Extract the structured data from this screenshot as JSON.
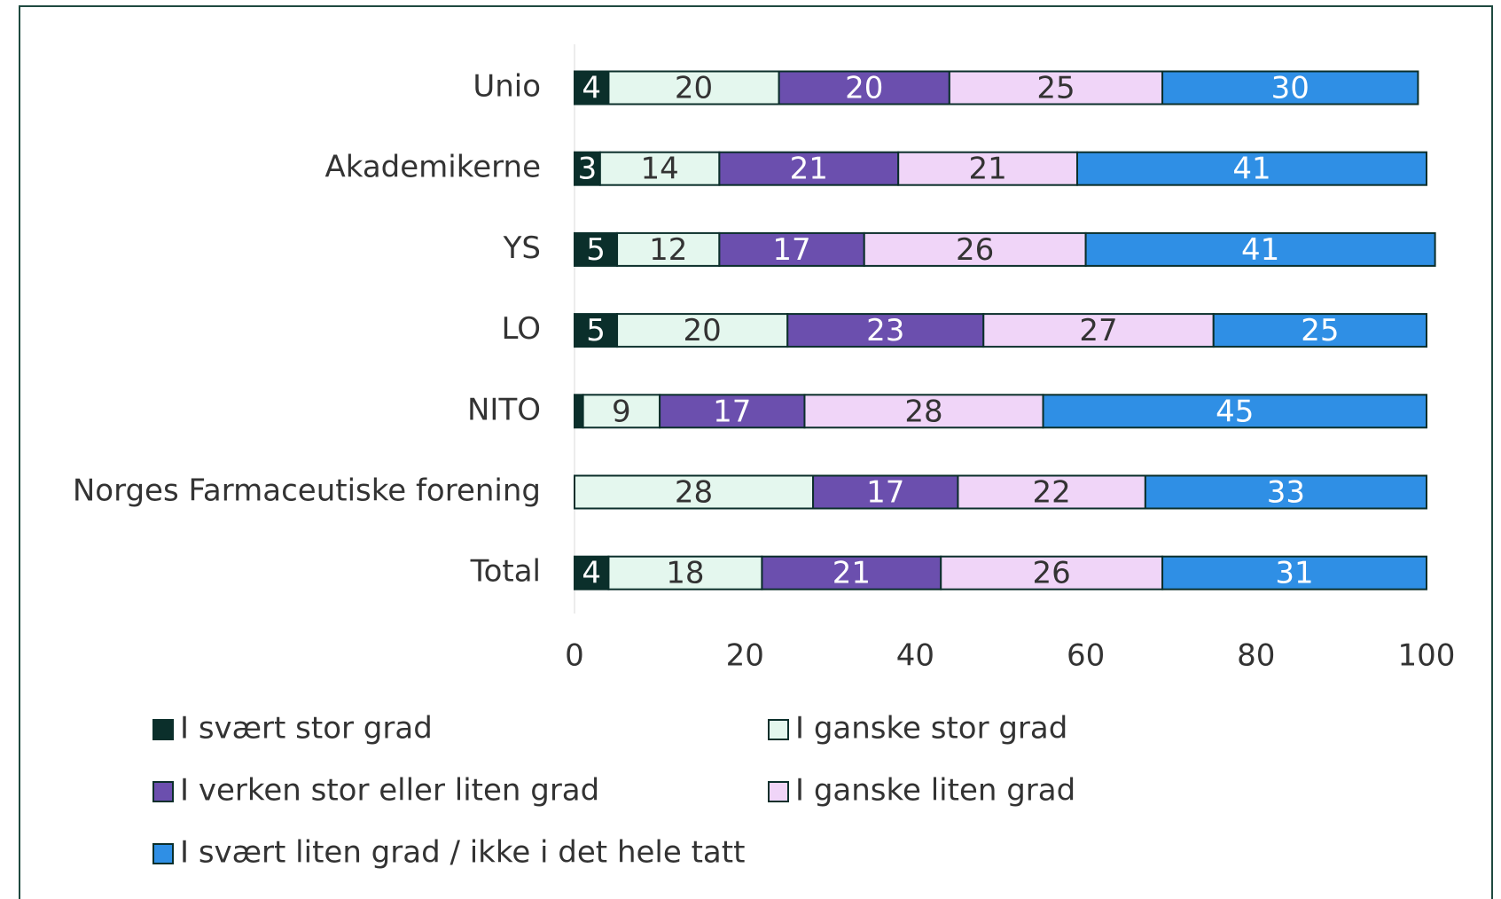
{
  "chart_data": {
    "type": "stacked_barh",
    "categories": [
      "Unio",
      "Akademikerne",
      "YS",
      "LO",
      "NITO",
      "Norges Farmaceutiske forening",
      "Total"
    ],
    "series": [
      {
        "name": "I svært stor grad",
        "color": "#0b2f2b",
        "values": [
          4,
          3,
          5,
          5,
          1,
          0,
          4
        ]
      },
      {
        "name": "I ganske stor grad",
        "color": "#e4f7ee",
        "values": [
          20,
          14,
          12,
          20,
          9,
          28,
          18
        ]
      },
      {
        "name": "I verken stor eller liten grad",
        "color": "#6b4fae",
        "values": [
          20,
          21,
          17,
          23,
          17,
          17,
          21
        ]
      },
      {
        "name": "I ganske liten grad",
        "color": "#f0d5f8",
        "values": [
          25,
          21,
          26,
          27,
          28,
          22,
          26
        ]
      },
      {
        "name": "I svært liten grad / ikke i det hele tatt",
        "color": "#2f8fe5",
        "values": [
          30,
          41,
          41,
          25,
          45,
          33,
          31
        ]
      }
    ],
    "xlim": [
      0,
      100
    ],
    "xticks": [
      0,
      20,
      40,
      60,
      80,
      100
    ],
    "legend": "bottom"
  }
}
